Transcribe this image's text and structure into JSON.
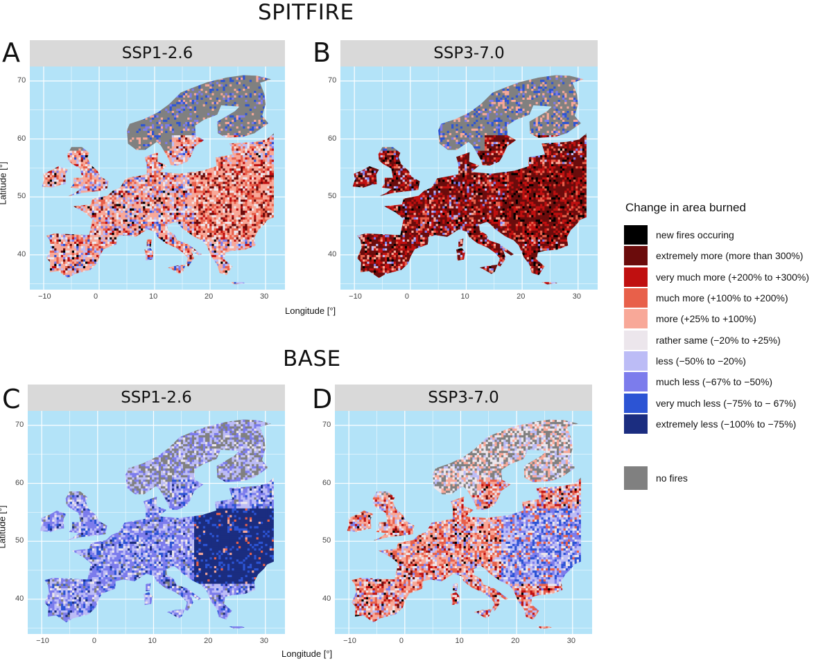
{
  "figure": {
    "top_title": "SPITFIRE",
    "bottom_title": "BASE"
  },
  "panels": [
    {
      "id": "A",
      "letter": "A",
      "scenario": "SSP1-2.6",
      "model": "SPITFIRE",
      "palette": "spitfire_ssp126"
    },
    {
      "id": "B",
      "letter": "B",
      "scenario": "SSP3-7.0",
      "model": "SPITFIRE",
      "palette": "spitfire_ssp370"
    },
    {
      "id": "C",
      "letter": "C",
      "scenario": "SSP1-2.6",
      "model": "BASE",
      "palette": "base_ssp126"
    },
    {
      "id": "D",
      "letter": "D",
      "scenario": "SSP3-7.0",
      "model": "BASE",
      "palette": "base_ssp370"
    }
  ],
  "axes": {
    "x_title": "Longitude [°]",
    "y_title": "Latitude [°]",
    "x_ticks": [
      "−10",
      "0",
      "10",
      "20",
      "30"
    ],
    "y_ticks": [
      "70",
      "60",
      "50",
      "40"
    ],
    "x_tick_values": [
      -10,
      0,
      10,
      20,
      30
    ],
    "y_tick_values": [
      70,
      60,
      50,
      40
    ],
    "x_range": [
      -12.5,
      33.5
    ],
    "y_range": [
      34,
      72.5
    ]
  },
  "legend": {
    "title": "Change in area burned",
    "items": [
      {
        "label": "new fires occuring",
        "color": "#000000"
      },
      {
        "label": "extremely more (more than 300%)",
        "color": "#6b0c0c"
      },
      {
        "label": "very much more (+200% to +300%)",
        "color": "#c01010"
      },
      {
        "label": "much more (+100% to +200%)",
        "color": "#e8604a"
      },
      {
        "label": "more (+25% to +100%)",
        "color": "#f8a898"
      },
      {
        "label": "rather same (−20% to +25%)",
        "color": "#ece6ec"
      },
      {
        "label": "less (−50% to −20%)",
        "color": "#bcbcf6"
      },
      {
        "label": "much less (−67% to −50%)",
        "color": "#7c7cec"
      },
      {
        "label": "very much less (−75% to − 67%)",
        "color": "#2c54d4"
      },
      {
        "label": "extremely less (−100% to −75%)",
        "color": "#1b2d80"
      }
    ],
    "no_fires": {
      "label": "no fires",
      "color": "#808080"
    }
  },
  "colors": {
    "ocean": "#b3e3f8",
    "grid": "#ffffff",
    "strip": "#d9d9d9"
  }
}
